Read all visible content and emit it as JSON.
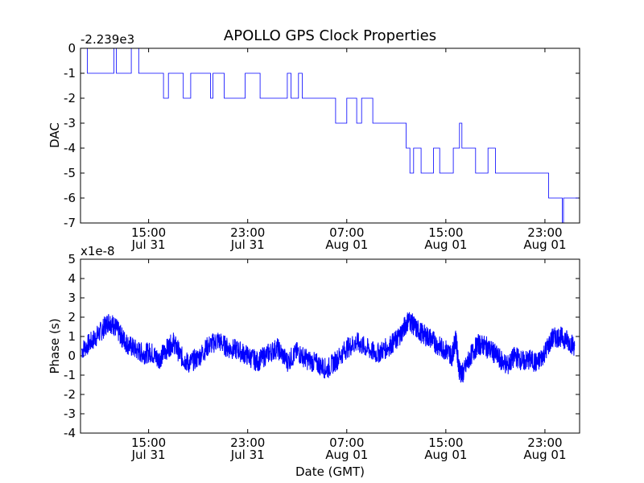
{
  "figure": {
    "title": "APOLLO GPS Clock Properties",
    "series_color": "#0000ff"
  },
  "chart_data": [
    {
      "type": "line",
      "name": "dac-panel",
      "ylabel": "DAC",
      "xlabel": "",
      "offset_label": "-2.239e3",
      "ylim": [
        -7,
        0
      ],
      "yticks": [
        0,
        -1,
        -2,
        -3,
        -4,
        -5,
        -6,
        -7
      ],
      "xlim_hours": [
        9.5,
        49.8
      ],
      "xticks": [
        {
          "hour": 15,
          "time": "15:00",
          "date": "Jul 31"
        },
        {
          "hour": 23,
          "time": "23:00",
          "date": "Jul 31"
        },
        {
          "hour": 31,
          "time": "07:00",
          "date": "Aug 01"
        },
        {
          "hour": 39,
          "time": "15:00",
          "date": "Aug 01"
        },
        {
          "hour": 47,
          "time": "23:00",
          "date": "Aug 01"
        }
      ],
      "series": [
        {
          "name": "DAC",
          "x_hours": [
            10.0,
            10.05,
            12.0,
            12.2,
            12.4,
            13.6,
            14.2,
            16.0,
            16.2,
            16.6,
            17.8,
            18.4,
            20.0,
            20.2,
            21.1,
            22.8,
            24.0,
            26.2,
            26.5,
            27.1,
            27.4,
            28.0,
            30.0,
            30.1,
            31.0,
            31.8,
            32.2,
            33.1,
            35.8,
            36.1,
            36.4,
            37.0,
            38.0,
            38.5,
            39.6,
            40.0,
            40.1,
            40.3,
            40.6,
            41.4,
            42.4,
            43.0,
            44.3,
            47.2,
            47.3,
            48.0,
            48.4,
            48.5,
            48.9,
            49.3
          ],
          "values": [
            0,
            -1,
            -1,
            0,
            -1,
            0,
            -1,
            -1,
            -2,
            -1,
            -2,
            -1,
            -2,
            -1,
            -2,
            -1,
            -2,
            -1,
            -2,
            -1,
            -2,
            -2,
            -2,
            -3,
            -2,
            -3,
            -2,
            -3,
            -4,
            -5,
            -4,
            -5,
            -4,
            -5,
            -4,
            -4,
            -3,
            -4,
            -4,
            -5,
            -4,
            -5,
            -5,
            -5,
            -6,
            -6,
            -7,
            -6,
            -6,
            -6
          ]
        }
      ]
    },
    {
      "type": "line",
      "name": "phase-panel",
      "ylabel": "Phase (s)",
      "xlabel": "Date (GMT)",
      "offset_label": "x1e-8",
      "ylim": [
        -4,
        5
      ],
      "yticks": [
        5,
        4,
        3,
        2,
        1,
        0,
        -1,
        -2,
        -3,
        -4
      ],
      "xlim_hours": [
        9.5,
        49.8
      ],
      "xticks": [
        {
          "hour": 15,
          "time": "15:00",
          "date": "Jul 31"
        },
        {
          "hour": 23,
          "time": "23:00",
          "date": "Jul 31"
        },
        {
          "hour": 31,
          "time": "07:00",
          "date": "Aug 01"
        },
        {
          "hour": 39,
          "time": "15:00",
          "date": "Aug 01"
        },
        {
          "hour": 47,
          "time": "23:00",
          "date": "Aug 01"
        }
      ],
      "series": [
        {
          "name": "Phase",
          "x_hours": [
            9.6,
            10.5,
            11.2,
            11.8,
            12.3,
            12.8,
            13.3,
            14.0,
            14.6,
            15.2,
            15.8,
            16.4,
            17.0,
            17.6,
            18.2,
            19.0,
            19.8,
            20.6,
            21.4,
            22.2,
            23.0,
            23.8,
            24.6,
            25.4,
            26.2,
            27.0,
            27.8,
            28.6,
            29.4,
            30.2,
            31.0,
            31.8,
            32.6,
            33.4,
            34.2,
            35.0,
            35.5,
            36.0,
            36.6,
            37.2,
            37.8,
            38.4,
            39.0,
            39.5,
            39.8,
            40.1,
            40.4,
            41.0,
            41.6,
            42.2,
            42.8,
            43.4,
            44.0,
            44.6,
            45.2,
            45.8,
            46.4,
            47.0,
            47.6,
            48.2,
            48.8,
            49.4
          ],
          "values": [
            0.3,
            0.8,
            1.3,
            1.8,
            1.5,
            1.0,
            0.6,
            0.3,
            0.1,
            0.2,
            -0.2,
            0.3,
            0.7,
            0.0,
            -0.4,
            -0.1,
            0.5,
            0.8,
            0.4,
            0.3,
            0.0,
            -0.3,
            0.1,
            0.4,
            -0.3,
            0.2,
            -0.2,
            -0.4,
            -0.7,
            -0.2,
            0.4,
            0.7,
            0.4,
            0.1,
            0.4,
            0.8,
            1.3,
            1.9,
            1.4,
            1.1,
            0.9,
            0.5,
            0.3,
            0.0,
            0.9,
            -0.8,
            -0.9,
            0.0,
            0.6,
            0.5,
            0.2,
            -0.2,
            -0.5,
            0.0,
            -0.3,
            -0.2,
            -0.4,
            0.2,
            0.9,
            1.0,
            0.8,
            0.5
          ]
        }
      ]
    }
  ]
}
